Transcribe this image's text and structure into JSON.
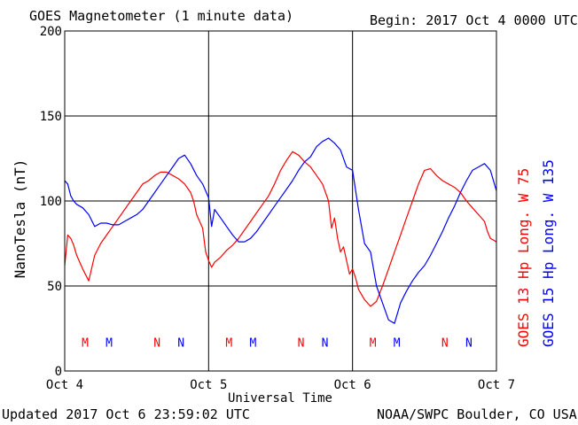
{
  "header": {
    "title": "GOES Magnetometer (1 minute data)",
    "begin": "Begin:  2017 Oct 4 0000 UTC"
  },
  "footer": {
    "updated": "Updated 2017 Oct  6 23:59:02 UTC",
    "source": "NOAA/SWPC Boulder, CO USA"
  },
  "colors": {
    "goes13": "#ff0000",
    "goes15": "#0000ff",
    "grid": "#000000"
  },
  "chart_data": {
    "type": "line",
    "title": "GOES Magnetometer (1 minute data)",
    "xlabel": "Universal Time",
    "ylabel": "NanoTesla (nT)",
    "ylim": [
      0,
      200
    ],
    "yticks": [
      0,
      50,
      100,
      150,
      200
    ],
    "xlim": [
      0,
      72
    ],
    "x_units": "hours since 2017 Oct 4 0000 UTC",
    "xticks": [
      {
        "x": 0,
        "label": "Oct 4"
      },
      {
        "x": 24,
        "label": "Oct 5"
      },
      {
        "x": 48,
        "label": "Oct 6"
      },
      {
        "x": 72,
        "label": "Oct 7"
      }
    ],
    "grid": true,
    "series": [
      {
        "name": "GOES 13 Hp  Long. W 75",
        "color": "#ff0000",
        "x": [
          0,
          0.5,
          1,
          1.5,
          2,
          3,
          4,
          5,
          6,
          7,
          8,
          9,
          10,
          11,
          12,
          13,
          14,
          15,
          16,
          17,
          18,
          19,
          20,
          21,
          21.5,
          22,
          23,
          23.5,
          24,
          24.5,
          25,
          26,
          27,
          28,
          29,
          30,
          31,
          32,
          33,
          34,
          35,
          36,
          37,
          38,
          39,
          40,
          41,
          42,
          43,
          44,
          44.5,
          45,
          45.5,
          46,
          46.5,
          47,
          47.5,
          48,
          48.5,
          49,
          50,
          51,
          52,
          53,
          54,
          55,
          56,
          57,
          58,
          59,
          60,
          61,
          62,
          63,
          64,
          65,
          66,
          67,
          68,
          69,
          70,
          70.5,
          71,
          72
        ],
        "values": [
          62,
          80,
          78,
          74,
          68,
          60,
          53,
          68,
          75,
          80,
          85,
          90,
          95,
          100,
          105,
          110,
          112,
          115,
          117,
          117,
          115,
          113,
          110,
          105,
          100,
          92,
          84,
          70,
          65,
          61,
          64,
          67,
          71,
          74,
          78,
          83,
          88,
          93,
          98,
          103,
          110,
          118,
          124,
          129,
          127,
          123,
          120,
          115,
          110,
          100,
          84,
          90,
          78,
          70,
          73,
          65,
          57,
          60,
          55,
          48,
          42,
          38,
          41,
          50,
          60,
          70,
          80,
          90,
          100,
          110,
          118,
          119,
          115,
          112,
          110,
          108,
          105,
          100,
          96,
          92,
          88,
          82,
          78,
          76
        ]
      },
      {
        "name": "GOES 15 Hp  Long. W 135",
        "color": "#0000ff",
        "x": [
          0,
          0.5,
          1,
          1.5,
          2,
          3,
          4,
          5,
          6,
          7,
          8,
          9,
          10,
          11,
          12,
          13,
          14,
          15,
          16,
          17,
          18,
          19,
          20,
          21,
          22,
          23,
          24,
          24.5,
          25,
          26,
          27,
          28,
          29,
          30,
          31,
          32,
          33,
          34,
          35,
          36,
          37,
          38,
          39,
          40,
          41,
          42,
          43,
          44,
          45,
          46,
          47,
          48,
          49,
          50,
          51,
          52,
          53,
          54,
          55,
          56,
          57,
          58,
          59,
          60,
          61,
          62,
          63,
          64,
          65,
          66,
          67,
          68,
          69,
          70,
          71,
          72
        ],
        "values": [
          112,
          110,
          103,
          100,
          98,
          96,
          92,
          85,
          87,
          87,
          86,
          86,
          88,
          90,
          92,
          95,
          100,
          105,
          110,
          115,
          120,
          125,
          127,
          122,
          115,
          110,
          102,
          85,
          95,
          90,
          85,
          80,
          76,
          76,
          78,
          82,
          87,
          92,
          97,
          102,
          107,
          112,
          118,
          123,
          126,
          132,
          135,
          137,
          134,
          130,
          120,
          118,
          95,
          75,
          70,
          50,
          40,
          30,
          28,
          40,
          47,
          53,
          58,
          62,
          68,
          75,
          82,
          90,
          97,
          105,
          112,
          118,
          120,
          122,
          118,
          106
        ]
      }
    ],
    "markers": [
      {
        "label": "M",
        "x": 3.4,
        "series": 0
      },
      {
        "label": "M",
        "x": 7.4,
        "series": 1
      },
      {
        "label": "N",
        "x": 15.4,
        "series": 0
      },
      {
        "label": "N",
        "x": 19.4,
        "series": 1
      },
      {
        "label": "M",
        "x": 27.4,
        "series": 0
      },
      {
        "label": "M",
        "x": 31.4,
        "series": 1
      },
      {
        "label": "N",
        "x": 39.4,
        "series": 0
      },
      {
        "label": "N",
        "x": 43.4,
        "series": 1
      },
      {
        "label": "M",
        "x": 51.4,
        "series": 0
      },
      {
        "label": "M",
        "x": 55.4,
        "series": 1
      },
      {
        "label": "N",
        "x": 63.4,
        "series": 0
      },
      {
        "label": "N",
        "x": 67.4,
        "series": 1
      }
    ],
    "marker_y": 17,
    "legend_placement": "right-vertical"
  }
}
